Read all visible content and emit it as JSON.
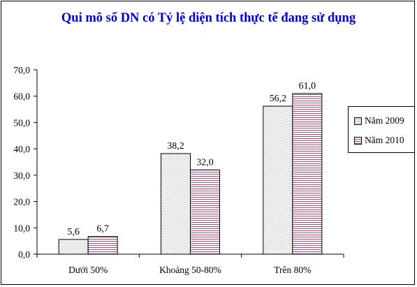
{
  "chart_data": {
    "type": "bar",
    "title": "Qui mô số DN có Tỷ lệ diện tích thực tế đang sử dụng",
    "xlabel": "",
    "ylabel": "",
    "categories": [
      "Dưới 50%",
      "Khoảng 50-80%",
      "Trên 80%"
    ],
    "series": [
      {
        "name": "Năm 2009",
        "values": [
          5.6,
          38.2,
          56.2
        ],
        "labels": [
          "5,6",
          "38,2",
          "56,2"
        ],
        "pattern": "dots",
        "color": "#7a7a7a"
      },
      {
        "name": "Năm 2010",
        "values": [
          6.7,
          32.0,
          61.0
        ],
        "labels": [
          "6,7",
          "32,0",
          "61,0"
        ],
        "pattern": "stripes",
        "color": "#b04a7a"
      }
    ],
    "ylim": [
      0,
      70
    ],
    "yticks": [
      "0,0",
      "10,0",
      "20,0",
      "30,0",
      "40,0",
      "50,0",
      "60,0",
      "70,0"
    ],
    "grid": false,
    "legend": "right"
  }
}
